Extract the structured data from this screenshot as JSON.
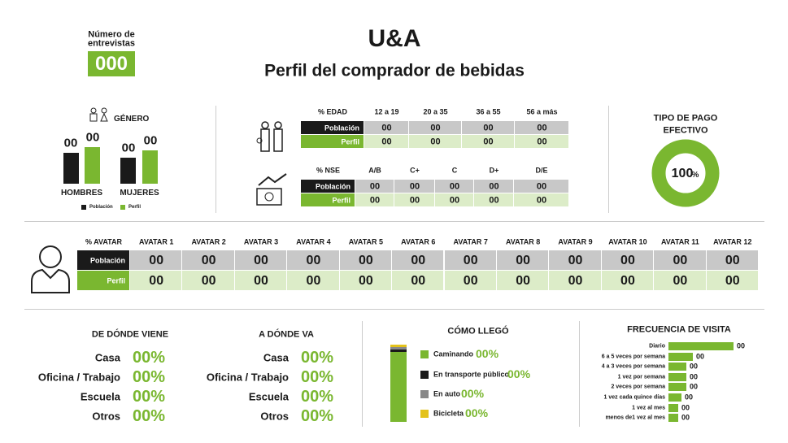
{
  "header": {
    "counter_label_1": "Número de",
    "counter_label_2": "entrevistas",
    "counter_value": "000",
    "title": "U&A",
    "subtitle": "Perfil del comprador de bebidas"
  },
  "gender": {
    "title": "GÉNERO",
    "groups": [
      {
        "label": "HOMBRES",
        "values": [
          "00",
          "00"
        ]
      },
      {
        "label": "MUJERES",
        "values": [
          "00",
          "00"
        ]
      }
    ],
    "legend": [
      "Población",
      "Perfil"
    ]
  },
  "age_table": {
    "header": [
      "% EDAD",
      "12 a 19",
      "20 a 35",
      "36 a 55",
      "56 a más"
    ],
    "rows": [
      [
        "Población",
        "00",
        "00",
        "00",
        "00"
      ],
      [
        "Perfil",
        "00",
        "00",
        "00",
        "00"
      ]
    ]
  },
  "nse_table": {
    "header": [
      "% NSE",
      "A/B",
      "C+",
      "C",
      "D+",
      "D/E"
    ],
    "rows": [
      [
        "Población",
        "00",
        "00",
        "00",
        "00",
        "00"
      ],
      [
        "Perfil",
        "00",
        "00",
        "00",
        "00",
        "00"
      ]
    ]
  },
  "payment": {
    "title_1": "TIPO DE PAGO",
    "title_2": "EFECTIVO",
    "value": "100",
    "unit": "%"
  },
  "avatar_table": {
    "header": [
      "% AVATAR",
      "AVATAR 1",
      "AVATAR 2",
      "AVATAR 3",
      "AVATAR 4",
      "AVATAR 5",
      "AVATAR 6",
      "AVATAR 7",
      "AVATAR 8",
      "AVATAR 9",
      "AVATAR 10",
      "AVATAR 11",
      "AVATAR 12"
    ],
    "rows": [
      [
        "Población",
        "00",
        "00",
        "00",
        "00",
        "00",
        "00",
        "00",
        "00",
        "00",
        "00",
        "00",
        "00"
      ],
      [
        "Perfil",
        "00",
        "00",
        "00",
        "00",
        "00",
        "00",
        "00",
        "00",
        "00",
        "00",
        "00",
        "00"
      ]
    ]
  },
  "origin": {
    "title": "DE DÓNDE VIENE",
    "rows": [
      {
        "label": "Casa",
        "value": "00%"
      },
      {
        "label": "Oficina / Trabajo",
        "value": "00%"
      },
      {
        "label": "Escuela",
        "value": "00%"
      },
      {
        "label": "Otros",
        "value": "00%"
      }
    ]
  },
  "destination": {
    "title": "A DÓNDE VA",
    "rows": [
      {
        "label": "Casa",
        "value": "00%"
      },
      {
        "label": "Oficina / Trabajo",
        "value": "00%"
      },
      {
        "label": "Escuela",
        "value": "00%"
      },
      {
        "label": "Otros",
        "value": "00%"
      }
    ]
  },
  "arrival": {
    "title": "CÓMO LLEGÓ",
    "items": [
      {
        "label": "Caminando",
        "value": "00%"
      },
      {
        "label": "En transporte público",
        "value": "00%"
      },
      {
        "label": "En auto",
        "value": "00%"
      },
      {
        "label": "Bicicleta",
        "value": "00%"
      }
    ]
  },
  "frequency": {
    "title": "FRECUENCIA DE VISITA",
    "items": [
      {
        "label": "Diario",
        "value": "00"
      },
      {
        "label": "6 a 5 veces por semana",
        "value": "00"
      },
      {
        "label": "4 a 3 veces por semana",
        "value": "00"
      },
      {
        "label": "1 vez por semana",
        "value": "00"
      },
      {
        "label": "2 veces por semana",
        "value": "00"
      },
      {
        "label": "1 vez cada quince días",
        "value": "00"
      },
      {
        "label": "1 vez al mes",
        "value": "00"
      },
      {
        "label": "menos de1 vez al mes",
        "value": "00"
      }
    ]
  }
}
